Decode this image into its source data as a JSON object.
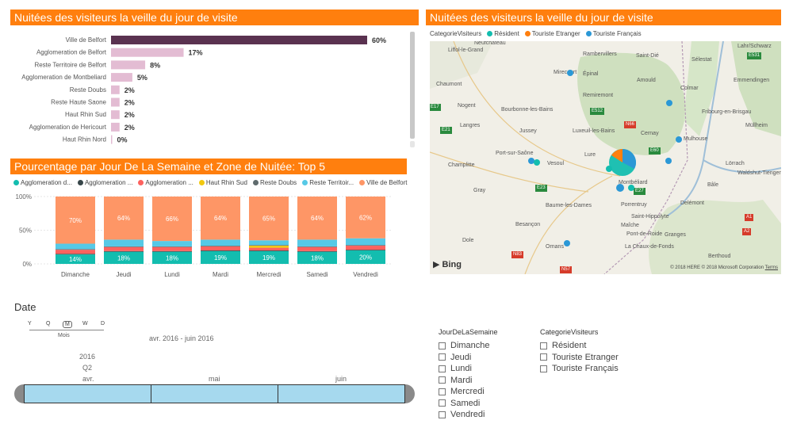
{
  "panel1": {
    "title": "Nuitées des visiteurs la veille du jour de visite",
    "bars": [
      {
        "label": "Ville de Belfort",
        "value": 60,
        "text": "60%"
      },
      {
        "label": "Agglomeration de Belfort",
        "value": 17,
        "text": "17%"
      },
      {
        "label": "Reste Territoire de Belfort",
        "value": 8,
        "text": "8%"
      },
      {
        "label": "Agglomeration de Montbeliard",
        "value": 5,
        "text": "5%"
      },
      {
        "label": "Reste Doubs",
        "value": 2,
        "text": "2%"
      },
      {
        "label": "Reste Haute Saone",
        "value": 2,
        "text": "2%"
      },
      {
        "label": "Haut Rhin Sud",
        "value": 2,
        "text": "2%"
      },
      {
        "label": "Agglomeration de Hericourt",
        "value": 2,
        "text": "2%"
      },
      {
        "label": "Haut Rhin Nord",
        "value": 0,
        "text": "0%"
      }
    ],
    "colors": {
      "first": "#5a3250",
      "rest": "#e3bcd3"
    }
  },
  "chart_data": [
    {
      "type": "bar",
      "title": "Nuitées des visiteurs la veille du jour de visite",
      "orientation": "horizontal",
      "categories": [
        "Ville de Belfort",
        "Agglomeration de Belfort",
        "Reste Territoire de Belfort",
        "Agglomeration de Montbeliard",
        "Reste Doubs",
        "Reste Haute Saone",
        "Haut Rhin Sud",
        "Agglomeration de Hericourt",
        "Haut Rhin Nord"
      ],
      "values": [
        60,
        17,
        8,
        5,
        2,
        2,
        2,
        2,
        0
      ]
    },
    {
      "type": "bar",
      "stacked": true,
      "title": "Pourcentage par Jour De La Semaine et Zone de Nuitée: Top 5",
      "categories": [
        "Dimanche",
        "Jeudi",
        "Lundi",
        "Mardi",
        "Mercredi",
        "Samedi",
        "Vendredi"
      ],
      "yticks": [
        "100%",
        "50%",
        "0%"
      ],
      "ylim": [
        0,
        100
      ],
      "series": [
        {
          "name": "Agglomeration d...",
          "color": "#13bdaf",
          "values": [
            14,
            18,
            18,
            19,
            19,
            18,
            20
          ],
          "labels": [
            "14%",
            "18%",
            "18%",
            "19%",
            "19%",
            "18%",
            "20%"
          ]
        },
        {
          "name": "Agglomeration ...",
          "color": "#374649",
          "values": [
            1,
            1,
            1,
            1,
            1,
            1,
            1
          ]
        },
        {
          "name": "Agglomeration ...",
          "color": "#fd625e",
          "values": [
            6,
            6,
            6,
            6,
            4,
            6,
            6
          ]
        },
        {
          "name": "Haut Rhin Sud",
          "color": "#f2c80f",
          "values": [
            0,
            0,
            0,
            0,
            3,
            0,
            0
          ]
        },
        {
          "name": "Reste Doubs",
          "color": "#5f6b6d",
          "values": [
            1,
            1,
            1,
            1,
            1,
            1,
            1
          ]
        },
        {
          "name": "Reste Territoir...",
          "color": "#56c9e6",
          "values": [
            8,
            10,
            8,
            9,
            7,
            10,
            10
          ]
        },
        {
          "name": "Ville de Belfort",
          "color": "#fe9666",
          "values": [
            70,
            64,
            66,
            64,
            65,
            64,
            62
          ],
          "labels": [
            "70%",
            "64%",
            "66%",
            "64%",
            "65%",
            "64%",
            "62%"
          ]
        }
      ]
    }
  ],
  "panel2": {
    "title": "Pourcentage par Jour De La Semaine et Zone de Nuitée: Top 5"
  },
  "map": {
    "title": "Nuitées des visiteurs la veille du jour de visite",
    "legend_title": "CategorieVisiteurs",
    "legend": [
      {
        "label": "Résident",
        "color": "#13bdaf"
      },
      {
        "label": "Touriste Etranger",
        "color": "#ff7f0e"
      },
      {
        "label": "Touriste Français",
        "color": "#2b98d6"
      }
    ],
    "places": [
      {
        "name": "Liffol-le-Grand",
        "x": 565,
        "y": 60
      },
      {
        "name": "Neufchâteau",
        "x": 598,
        "y": 51
      },
      {
        "name": "Rambervillers",
        "x": 735,
        "y": 65
      },
      {
        "name": "Saint-Dié",
        "x": 802,
        "y": 67
      },
      {
        "name": "Sélestat",
        "x": 872,
        "y": 72
      },
      {
        "name": "Lahr/Schwarz",
        "x": 930,
        "y": 55
      },
      {
        "name": "Épinal",
        "x": 735,
        "y": 90
      },
      {
        "name": "Mirecourt",
        "x": 698,
        "y": 88
      },
      {
        "name": "Emmendingen",
        "x": 925,
        "y": 98
      },
      {
        "name": "Chaumont",
        "x": 550,
        "y": 103
      },
      {
        "name": "Remiremont",
        "x": 735,
        "y": 117
      },
      {
        "name": "Colmar",
        "x": 858,
        "y": 108
      },
      {
        "name": "Amould",
        "x": 803,
        "y": 98
      },
      {
        "name": "Nogent",
        "x": 577,
        "y": 130
      },
      {
        "name": "Bourbonne-les-Bains",
        "x": 632,
        "y": 135
      },
      {
        "name": "Fribourg-en-Brisgau",
        "x": 885,
        "y": 138
      },
      {
        "name": "Cernay",
        "x": 808,
        "y": 165
      },
      {
        "name": "Jussey",
        "x": 655,
        "y": 162
      },
      {
        "name": "Luxeuil-les-Bains",
        "x": 722,
        "y": 162
      },
      {
        "name": "Mulhouse",
        "x": 862,
        "y": 172
      },
      {
        "name": "Langres",
        "x": 580,
        "y": 155
      },
      {
        "name": "Müllheim",
        "x": 940,
        "y": 155
      },
      {
        "name": "Port-sur-Saône",
        "x": 625,
        "y": 190
      },
      {
        "name": "Lure",
        "x": 737,
        "y": 192
      },
      {
        "name": "Vesoul",
        "x": 690,
        "y": 203
      },
      {
        "name": "Champlitte",
        "x": 565,
        "y": 205
      },
      {
        "name": "Lörrach",
        "x": 915,
        "y": 203
      },
      {
        "name": "Waldshut-Tiengen",
        "x": 930,
        "y": 215
      },
      {
        "name": "Montbéliard",
        "x": 780,
        "y": 227
      },
      {
        "name": "Gray",
        "x": 597,
        "y": 237
      },
      {
        "name": "Bâle",
        "x": 892,
        "y": 230
      },
      {
        "name": "Baume-les-Dames",
        "x": 688,
        "y": 256
      },
      {
        "name": "Porrentruy",
        "x": 783,
        "y": 255
      },
      {
        "name": "Delémont",
        "x": 858,
        "y": 253
      },
      {
        "name": "Besançon",
        "x": 650,
        "y": 280
      },
      {
        "name": "Maîche",
        "x": 783,
        "y": 281
      },
      {
        "name": "Saint-Hippolyte",
        "x": 796,
        "y": 270
      },
      {
        "name": "Pont-de-Roide",
        "x": 790,
        "y": 292
      },
      {
        "name": "Granges",
        "x": 838,
        "y": 293
      },
      {
        "name": "Ornans",
        "x": 688,
        "y": 308
      },
      {
        "name": "La Chaux-de-Fonds",
        "x": 788,
        "y": 308
      },
      {
        "name": "Berthoud",
        "x": 893,
        "y": 320
      },
      {
        "name": "Dole",
        "x": 583,
        "y": 300
      }
    ],
    "roads": [
      {
        "name": "E531",
        "x": 942,
        "y": 66,
        "kind": "green"
      },
      {
        "name": "E17",
        "x": 541,
        "y": 131,
        "kind": "green"
      },
      {
        "name": "E512",
        "x": 744,
        "y": 136,
        "kind": "green"
      },
      {
        "name": "N66",
        "x": 787,
        "y": 153,
        "kind": "red"
      },
      {
        "name": "E21",
        "x": 555,
        "y": 160,
        "kind": "green"
      },
      {
        "name": "E60",
        "x": 818,
        "y": 186,
        "kind": "green"
      },
      {
        "name": "E27",
        "x": 799,
        "y": 237,
        "kind": "green"
      },
      {
        "name": "E23",
        "x": 675,
        "y": 233,
        "kind": "green"
      },
      {
        "name": "A2",
        "x": 936,
        "y": 288,
        "kind": "red"
      },
      {
        "name": "A1",
        "x": 939,
        "y": 270,
        "kind": "red"
      },
      {
        "name": "N83",
        "x": 645,
        "y": 317,
        "kind": "red"
      },
      {
        "name": "N57",
        "x": 706,
        "y": 336,
        "kind": "red"
      }
    ],
    "bing": "Bing",
    "copyright": "© 2018 HERE © 2018 Microsoft Corporation",
    "terms": "Terms"
  },
  "date_slicer": {
    "title": "Date",
    "levels": [
      "Y",
      "Q",
      "M",
      "W",
      "D"
    ],
    "selected_level": "Mois",
    "range": "avr. 2016 - juin 2016",
    "year": "2016",
    "quarter": "Q2",
    "months": [
      "avr.",
      "mai",
      "juin"
    ]
  },
  "jour_slicer": {
    "title": "JourDeLaSemaine",
    "items": [
      "Dimanche",
      "Jeudi",
      "Lundi",
      "Mardi",
      "Mercredi",
      "Samedi",
      "Vendredi"
    ]
  },
  "cat_slicer": {
    "title": "CategorieVisiteurs",
    "items": [
      "Résident",
      "Touriste Etranger",
      "Touriste Français"
    ]
  }
}
